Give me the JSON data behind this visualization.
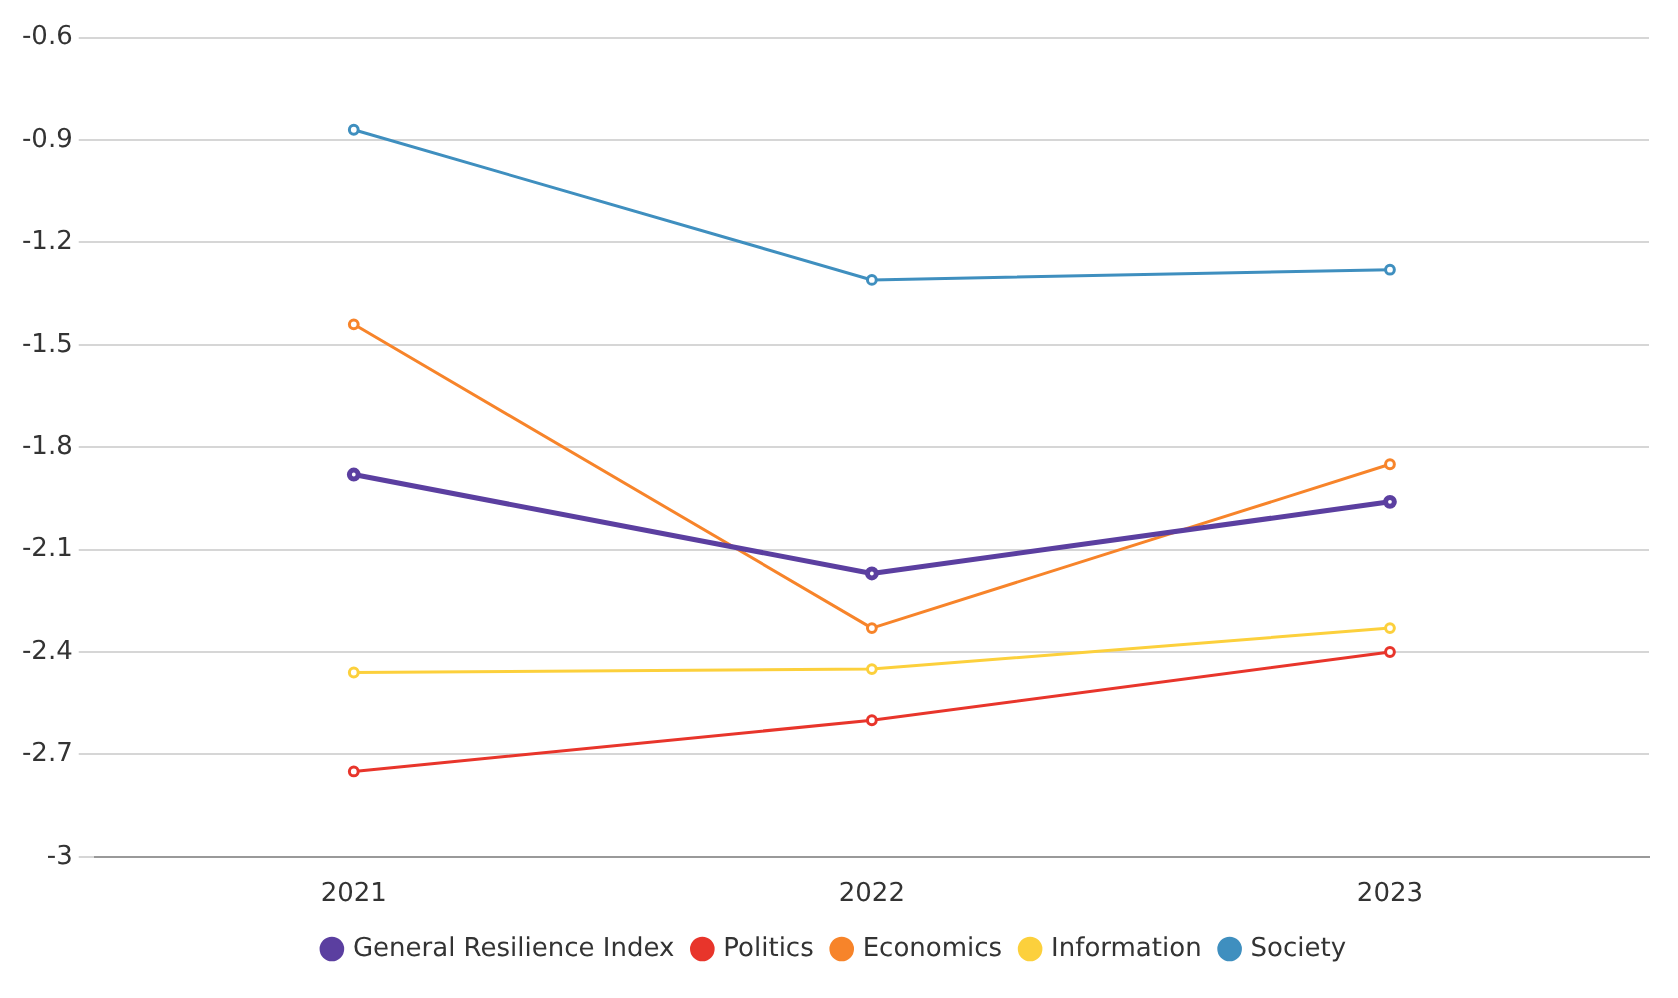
{
  "chart_data": {
    "type": "line",
    "categories": [
      "2021",
      "2022",
      "2023"
    ],
    "series": [
      {
        "name": "General Resilience Index",
        "color": "#5b3fa0",
        "values": [
          -1.88,
          -2.17,
          -1.96
        ]
      },
      {
        "name": "Politics",
        "color": "#e8352b",
        "values": [
          -2.75,
          -2.6,
          -2.4
        ]
      },
      {
        "name": "Economics",
        "color": "#f7842a",
        "values": [
          -1.44,
          -2.33,
          -1.85
        ]
      },
      {
        "name": "Information",
        "color": "#fcd03c",
        "values": [
          -2.46,
          -2.45,
          -2.33
        ]
      },
      {
        "name": "Society",
        "color": "#3f8fbf",
        "values": [
          -0.87,
          -1.31,
          -1.28
        ]
      }
    ],
    "ylim": [
      -3,
      -0.6
    ],
    "yticks": [
      -3,
      -2.7,
      -2.4,
      -2.1,
      -1.8,
      -1.5,
      -1.2,
      -0.9,
      -0.6
    ],
    "grid": "y",
    "legend": "bottom",
    "marker": "circle",
    "line_style": "solid"
  }
}
